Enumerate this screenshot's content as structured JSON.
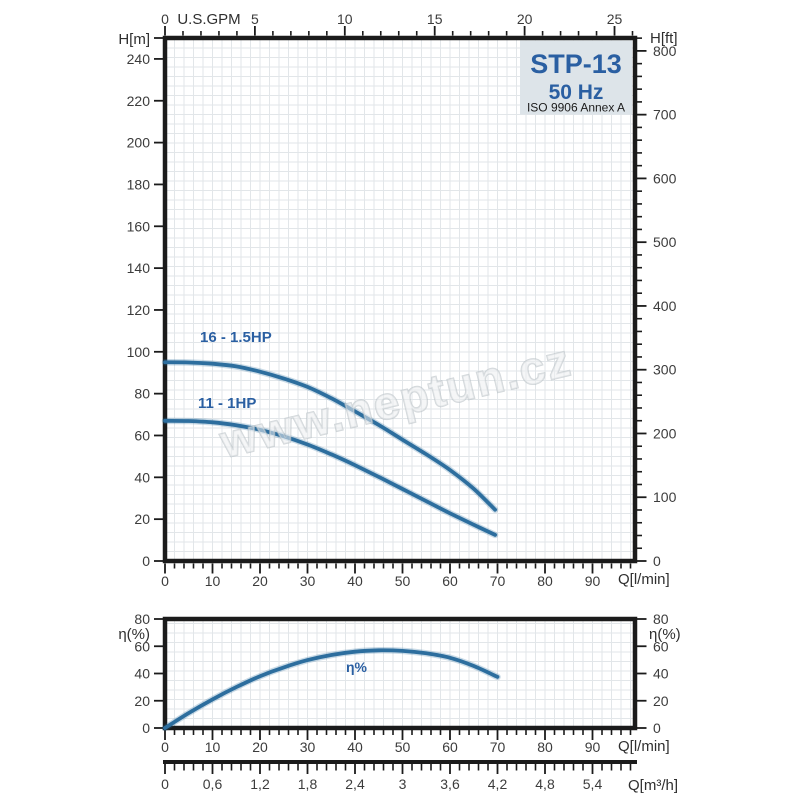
{
  "title_box": {
    "model": "STP-13",
    "frequency": "50 Hz",
    "standard": "ISO 9906 Annex A"
  },
  "watermark": "www.neptun.cz",
  "labels": {
    "head_m": "H[m]",
    "head_ft": "H[ft]",
    "gpm": "U.S.GPM",
    "flow_lmin": "Q[l/min]",
    "eta_axis": "η(%)",
    "flow_m3h": "Q[m³/h]",
    "eta_curve": "η%",
    "curve1": "16 - 1.5HP",
    "curve2": "11 - 1HP"
  },
  "colors": {
    "curve": "#2d6e9e",
    "label_blue": "#2a5fa2",
    "grid": "#e2e6e9",
    "axis": "#1b1b1b",
    "tick_text": "#3c3c3c",
    "box_bg": "#dde4e9",
    "watermark_fill": "#eceff1",
    "watermark_stroke": "#b4bcc2"
  },
  "chart_data": [
    {
      "type": "line",
      "title": "STP-13 50 Hz pump head curves",
      "xlabel": "Q[l/min]",
      "xlabel_top": "U.S.GPM",
      "ylabel_left": "H[m]",
      "ylabel_right": "H[ft]",
      "xlim_lmin": [
        0,
        99
      ],
      "ylim_m": [
        0,
        250
      ],
      "x_ticks_lmin": [
        0,
        10,
        20,
        30,
        40,
        50,
        60,
        70,
        80,
        90
      ],
      "x_minor_step_lmin": 2,
      "x_ticks_gpm": [
        0,
        5,
        10,
        15,
        20,
        25
      ],
      "x_minor_step_gpm": 1,
      "y_ticks_m": [
        240,
        220,
        200,
        180,
        160,
        140,
        120,
        100,
        80,
        60,
        40,
        20,
        0
      ],
      "y_ticks_ft": [
        800,
        700,
        600,
        500,
        400,
        300,
        200,
        100,
        0
      ],
      "y_minor_step_ft": 20,
      "grid": true,
      "series": [
        {
          "name": "16 - 1.5HP",
          "x": [
            0,
            5,
            10,
            15,
            20,
            25,
            30,
            35,
            40,
            45,
            50,
            55,
            60,
            65,
            69.5
          ],
          "y": [
            95,
            94.9,
            94.3,
            93,
            90.5,
            87.2,
            83.2,
            77.8,
            71.5,
            65,
            58,
            51,
            43.5,
            34.5,
            24.5
          ]
        },
        {
          "name": "11 - 1HP",
          "x": [
            0,
            5,
            10,
            15,
            20,
            25,
            30,
            35,
            40,
            45,
            50,
            55,
            60,
            65,
            69.5
          ],
          "y": [
            67,
            66.9,
            66.3,
            64.9,
            62.7,
            59.6,
            55.7,
            51,
            45.8,
            40.2,
            34.4,
            28.6,
            22.8,
            17.3,
            12.5
          ]
        }
      ]
    },
    {
      "type": "line",
      "title": "Efficiency curve",
      "xlabel": "Q[l/min]",
      "ylabel": "η(%)",
      "xlim_lmin": [
        0,
        99
      ],
      "ylim_pct": [
        0,
        80
      ],
      "x_ticks_lmin": [
        0,
        10,
        20,
        30,
        40,
        50,
        60,
        70,
        80,
        90
      ],
      "x_minor_step_lmin": 2,
      "y_ticks_pct": [
        80,
        60,
        40,
        20,
        0
      ],
      "grid": true,
      "series": [
        {
          "name": "η%",
          "x": [
            0,
            5,
            10,
            15,
            20,
            25,
            30,
            35,
            40,
            45,
            50,
            55,
            60,
            65,
            70
          ],
          "y": [
            0,
            11,
            21,
            30,
            38,
            44.5,
            49.8,
            53.6,
            56,
            57,
            56.6,
            54.8,
            51.5,
            45.5,
            37.5
          ]
        }
      ]
    },
    {
      "type": "axis-scale",
      "title": "Flow conversion scale",
      "label": "Q[m³/h]",
      "tick_values_m3h": [
        0,
        0.6,
        1.2,
        1.8,
        2.4,
        3,
        3.6,
        4.2,
        4.8,
        5.4
      ],
      "tick_labels": [
        "0",
        "0,6",
        "1,2",
        "1,8",
        "2,4",
        "3",
        "3,6",
        "4,2",
        "4,8",
        "5,4"
      ],
      "minor_step_lmin": 2
    }
  ]
}
